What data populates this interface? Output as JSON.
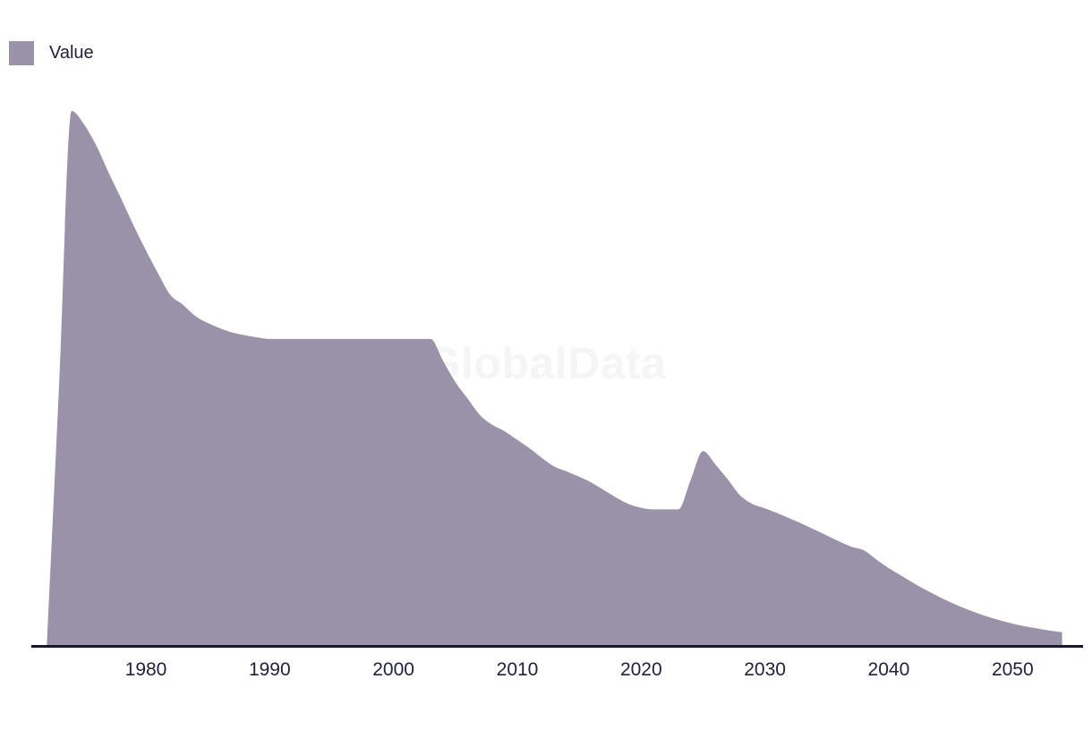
{
  "legend": {
    "items": [
      {
        "label": "Value",
        "swatch_color": "#9a92a9"
      }
    ]
  },
  "watermark": {
    "text": "GlobalData"
  },
  "colors": {
    "area_fill": "#9a92a9",
    "axis_line": "#16182b",
    "tick_text": "#20233b",
    "legend_text": "#20233b",
    "watermark_text": "#f5f5f6",
    "background": "#ffffff"
  },
  "chart_data": {
    "type": "area",
    "title": "",
    "xlabel": "",
    "ylabel": "",
    "grid": false,
    "legend_position": "top-left",
    "x_range": [
      1972,
      2054
    ],
    "y_range": [
      0,
      100
    ],
    "x_ticks": [
      1980,
      1990,
      2000,
      2010,
      2020,
      2030,
      2040,
      2050
    ],
    "series": [
      {
        "name": "Value",
        "x": [
          1972,
          1973,
          1974,
          1975,
          1976,
          1977,
          1978,
          1979,
          1980,
          1981,
          1982,
          1983,
          1984,
          1985,
          1986,
          1987,
          1988,
          1989,
          1990,
          1991,
          1992,
          1993,
          1994,
          1995,
          1996,
          1997,
          1998,
          1999,
          2000,
          2001,
          2002,
          2003,
          2004,
          2005,
          2006,
          2007,
          2008,
          2009,
          2010,
          2011,
          2012,
          2013,
          2014,
          2015,
          2016,
          2017,
          2018,
          2019,
          2020,
          2021,
          2022,
          2023,
          2024,
          2025,
          2026,
          2027,
          2028,
          2029,
          2030,
          2031,
          2032,
          2033,
          2034,
          2035,
          2036,
          2037,
          2038,
          2039,
          2040,
          2041,
          2042,
          2043,
          2044,
          2045,
          2046,
          2047,
          2048,
          2049,
          2050,
          2051,
          2052,
          2053,
          2054
        ],
        "values": [
          0,
          49,
          100,
          97.5,
          93.5,
          88.4,
          83.6,
          78.6,
          73.9,
          69.5,
          65.5,
          63.7,
          61.6,
          60.3,
          59.3,
          58.5,
          58.0,
          57.6,
          57.3,
          57.3,
          57.3,
          57.3,
          57.3,
          57.3,
          57.3,
          57.3,
          57.3,
          57.3,
          57.3,
          57.3,
          57.3,
          57.3,
          53.2,
          49.2,
          46.1,
          43.0,
          41.2,
          40.0,
          38.4,
          36.8,
          35.0,
          33.4,
          32.5,
          31.5,
          30.4,
          29.0,
          27.6,
          26.4,
          25.7,
          25.4,
          25.4,
          25.4,
          30.9,
          36.3,
          33.8,
          31.0,
          28.0,
          26.4,
          25.6,
          24.7,
          23.7,
          22.7,
          21.6,
          20.5,
          19.4,
          18.4,
          17.7,
          16.0,
          14.4,
          13.0,
          11.6,
          10.3,
          9.1,
          8.0,
          7.0,
          6.1,
          5.3,
          4.6,
          4.0,
          3.5,
          3.1,
          2.7,
          2.4
        ]
      }
    ]
  }
}
